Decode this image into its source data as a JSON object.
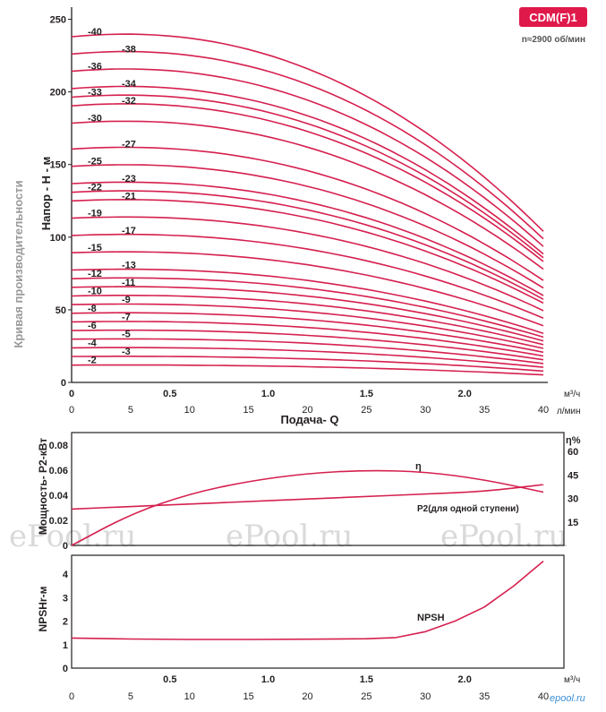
{
  "badge": {
    "text": "CDM(F)1",
    "color": "#e0194b"
  },
  "speed_note": "n≈2900 об/мин",
  "side_title": "Кривая производительности",
  "colors": {
    "curve": "#d5204f",
    "axis": "#231f20",
    "grid": "#e6e6e6"
  },
  "watermarks": [
    "ePool.ru",
    "ePool.ru",
    "ePool.ru"
  ],
  "footer_logo": "epool.ru",
  "chart_data": [
    {
      "type": "line",
      "ylabel": "Напор - Н - м",
      "ylim": [
        0,
        250
      ],
      "yticks": [
        0,
        50,
        100,
        150,
        200,
        250
      ],
      "x_m3h_ticks": [
        "0",
        "0.5",
        "1.0",
        "1.5",
        "2.0"
      ],
      "x_m3h_unit": "м³/ч",
      "x_lmin_ticks": [
        "0",
        "5",
        "10",
        "15",
        "20",
        "25",
        "30",
        "35",
        "40"
      ],
      "x_lmin_unit": "л/мин",
      "xlabel": "Подача- Q",
      "xlim_lmin": [
        0,
        40
      ],
      "shutoff_head_per_stage": 5.95,
      "head_per_stage_at_40": 2.6,
      "series": [
        {
          "name": "-2",
          "stages": 2
        },
        {
          "name": "-3",
          "stages": 3
        },
        {
          "name": "-4",
          "stages": 4
        },
        {
          "name": "-5",
          "stages": 5
        },
        {
          "name": "-6",
          "stages": 6
        },
        {
          "name": "-7",
          "stages": 7
        },
        {
          "name": "-8",
          "stages": 8
        },
        {
          "name": "-9",
          "stages": 9
        },
        {
          "name": "-10",
          "stages": 10
        },
        {
          "name": "-11",
          "stages": 11
        },
        {
          "name": "-12",
          "stages": 12
        },
        {
          "name": "-13",
          "stages": 13
        },
        {
          "name": "-15",
          "stages": 15
        },
        {
          "name": "-17",
          "stages": 17
        },
        {
          "name": "-19",
          "stages": 19
        },
        {
          "name": "-21",
          "stages": 21
        },
        {
          "name": "-22",
          "stages": 22
        },
        {
          "name": "-23",
          "stages": 23
        },
        {
          "name": "-25",
          "stages": 25
        },
        {
          "name": "-27",
          "stages": 27
        },
        {
          "name": "-30",
          "stages": 30
        },
        {
          "name": "-32",
          "stages": 32
        },
        {
          "name": "-33",
          "stages": 33
        },
        {
          "name": "-34",
          "stages": 34
        },
        {
          "name": "-36",
          "stages": 36
        },
        {
          "name": "-38",
          "stages": 38
        },
        {
          "name": "-40",
          "stages": 40
        }
      ]
    },
    {
      "type": "line",
      "ylabel": "Мощность- Р2-кВт",
      "ylim": [
        0,
        0.09
      ],
      "yticks": [
        "0",
        "0.02",
        "0.04",
        "0.06",
        "0.08"
      ],
      "y2label": "η%",
      "y2lim": [
        0,
        72
      ],
      "y2ticks": [
        "15",
        "30",
        "45",
        "60"
      ],
      "x": [
        0,
        5,
        10,
        15,
        20,
        25,
        30,
        35,
        40
      ],
      "series": [
        {
          "name": "η",
          "axis": "right",
          "values": [
            0,
            20,
            33,
            41,
            46,
            48,
            47,
            42,
            34
          ]
        },
        {
          "name": "P2(для одной ступени)",
          "axis": "left",
          "values": [
            0.029,
            0.031,
            0.033,
            0.035,
            0.037,
            0.039,
            0.041,
            0.043,
            0.0485
          ]
        }
      ]
    },
    {
      "type": "line",
      "ylabel": "NPSHr-м",
      "ylim": [
        0,
        4.8
      ],
      "yticks": [
        "0",
        "1",
        "2",
        "3",
        "4"
      ],
      "x_lmin_ticks": [
        "0",
        "5",
        "10",
        "15",
        "20",
        "25",
        "30",
        "35",
        "40"
      ],
      "x_m3h_ticks": [
        "0.5",
        "1.0",
        "1.5",
        "2.0"
      ],
      "x_m3h_unit": "м³/ч",
      "x": [
        0,
        5,
        10,
        15,
        20,
        25,
        27.5,
        30,
        32.5,
        35,
        37.5,
        40
      ],
      "series": [
        {
          "name": "NPSH",
          "values": [
            1.28,
            1.24,
            1.22,
            1.22,
            1.23,
            1.25,
            1.3,
            1.55,
            2.0,
            2.6,
            3.5,
            4.55
          ]
        }
      ]
    }
  ]
}
